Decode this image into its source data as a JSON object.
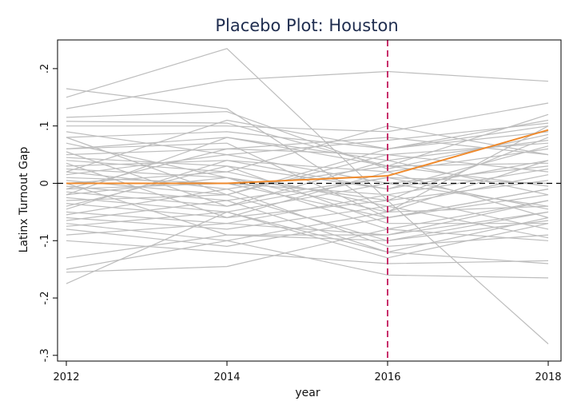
{
  "chart_data": {
    "type": "line",
    "title": "Placebo Plot: Houston",
    "xlabel": "year",
    "ylabel": "Latinx Turnout Gap",
    "x": [
      2012,
      2014,
      2016,
      2018
    ],
    "x_ticks": [
      "2012",
      "2014",
      "2016",
      "2018"
    ],
    "y_ticks": [
      {
        "value": 0.2,
        "label": ".2"
      },
      {
        "value": 0.1,
        "label": ".1"
      },
      {
        "value": 0,
        "label": "0"
      },
      {
        "value": -0.1,
        "label": "-.1"
      },
      {
        "value": -0.2,
        "label": "-.2"
      },
      {
        "value": -0.3,
        "label": "-.3"
      }
    ],
    "xlim": [
      2012,
      2018
    ],
    "ylim": [
      -0.31,
      0.25
    ],
    "grid": false,
    "legend": "none",
    "reference_lines": [
      {
        "axis": "y",
        "value": 0,
        "style": "dashed",
        "color": "#000000"
      },
      {
        "axis": "x",
        "value": 2016,
        "style": "dashed",
        "color": "#c2185b"
      }
    ],
    "colors": {
      "placebo": "#bdbdbd",
      "treated": "#ef8a2c",
      "frame": "#000000"
    },
    "treated_series": {
      "values": [
        0.0,
        0.0,
        0.013,
        0.093
      ]
    },
    "placebo_series": [
      [
        0.165,
        0.13,
        -0.05,
        0.1
      ],
      [
        0.15,
        0.235,
        -0.03,
        -0.28
      ],
      [
        0.13,
        0.18,
        0.195,
        0.178
      ],
      [
        0.115,
        0.125,
        0.025,
        0.085
      ],
      [
        0.108,
        0.105,
        0.03,
        0.12
      ],
      [
        0.1,
        0.1,
        0.09,
        0.14
      ],
      [
        0.09,
        0.05,
        0.075,
        0.105
      ],
      [
        0.08,
        0.09,
        0.06,
        0.1
      ],
      [
        0.07,
        0.01,
        -0.03,
        0.08
      ],
      [
        0.06,
        0.08,
        0.04,
        0.075
      ],
      [
        0.05,
        0.06,
        0.05,
        0.07
      ],
      [
        0.045,
        0.03,
        -0.01,
        0.065
      ],
      [
        0.04,
        0.02,
        0.1,
        0.05
      ],
      [
        0.03,
        0.04,
        0.02,
        0.06
      ],
      [
        0.025,
        0.01,
        -0.05,
        0.04
      ],
      [
        0.02,
        -0.01,
        0.03,
        0.035
      ],
      [
        0.015,
        0.05,
        0.0,
        0.03
      ],
      [
        0.01,
        0.0,
        -0.02,
        0.025
      ],
      [
        0.005,
        -0.02,
        0.05,
        0.02
      ],
      [
        0.0,
        0.02,
        -0.04,
        0.015
      ],
      [
        -0.005,
        -0.03,
        0.01,
        0.0
      ],
      [
        -0.01,
        0.0,
        -0.06,
        -0.01
      ],
      [
        -0.015,
        -0.04,
        0.04,
        -0.02
      ],
      [
        -0.02,
        0.01,
        -0.08,
        -0.03
      ],
      [
        -0.025,
        -0.05,
        0.0,
        -0.04
      ],
      [
        -0.03,
        -0.02,
        -0.1,
        -0.05
      ],
      [
        -0.035,
        -0.06,
        0.02,
        -0.06
      ],
      [
        -0.04,
        0.03,
        -0.07,
        -0.07
      ],
      [
        -0.05,
        -0.07,
        -0.02,
        -0.08
      ],
      [
        -0.055,
        -0.01,
        -0.11,
        -0.09
      ],
      [
        -0.06,
        -0.08,
        -0.04,
        -0.095
      ],
      [
        -0.065,
        -0.03,
        -0.12,
        -0.06
      ],
      [
        -0.07,
        -0.1,
        -0.05,
        -0.04
      ],
      [
        -0.075,
        -0.05,
        -0.13,
        -0.07
      ],
      [
        -0.08,
        -0.11,
        -0.06,
        -0.02
      ],
      [
        -0.09,
        -0.07,
        -0.09,
        -0.03
      ],
      [
        -0.1,
        -0.12,
        -0.14,
        -0.135
      ],
      [
        -0.13,
        -0.09,
        -0.1,
        -0.065
      ],
      [
        -0.15,
        -0.1,
        -0.16,
        -0.165
      ],
      [
        -0.155,
        -0.145,
        -0.08,
        -0.1
      ],
      [
        -0.175,
        -0.05,
        -0.12,
        -0.14
      ],
      [
        0.08,
        -0.02,
        0.06,
        0.11
      ],
      [
        0.06,
        0.07,
        -0.06,
        -0.01
      ],
      [
        0.02,
        0.11,
        0.06,
        0.09
      ],
      [
        -0.01,
        0.06,
        0.08,
        0.05
      ],
      [
        0.035,
        -0.06,
        -0.03,
        0.005
      ],
      [
        -0.045,
        0.04,
        -0.01,
        0.04
      ],
      [
        0.0,
        -0.09,
        -0.09,
        -0.05
      ],
      [
        -0.02,
        0.08,
        0.03,
        -0.005
      ],
      [
        0.055,
        -0.04,
        0.01,
        -0.045
      ]
    ]
  }
}
